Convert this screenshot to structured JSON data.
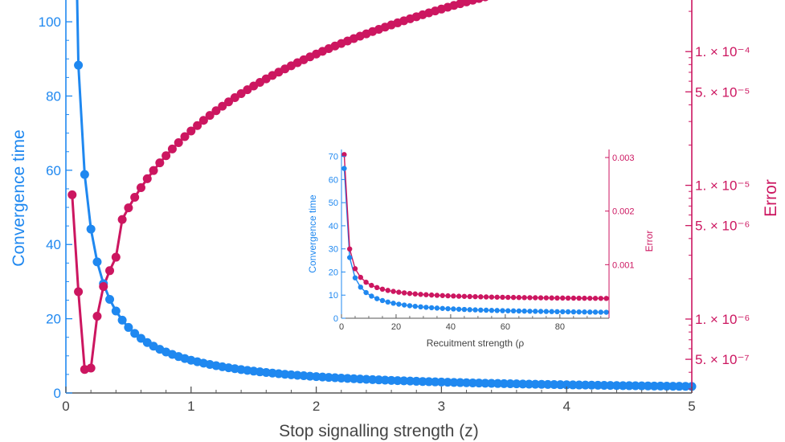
{
  "colors": {
    "convergence": "#1f88f0",
    "error": "#cc1660",
    "axis": "#555555"
  },
  "chart_data": [
    {
      "type": "scatter",
      "xlabel": "Stop signalling strength (z)",
      "ylabel": "Convergence time",
      "y2label": "Error",
      "xlim": [
        0,
        5
      ],
      "ylim": [
        0,
        105
      ],
      "y2lim_log": [
        2.8e-07,
        0.00023
      ],
      "y2scale": "log",
      "xticks": [
        "0",
        "1",
        "2",
        "3",
        "4",
        "5"
      ],
      "yticks": [
        "0",
        "20",
        "40",
        "60",
        "80",
        "100"
      ],
      "y2ticks": [
        {
          "value": 0.0001,
          "label": "1. × 10⁻⁴"
        },
        {
          "value": 5e-05,
          "label": "5. × 10⁻⁵"
        },
        {
          "value": 1e-05,
          "label": "1. × 10⁻⁵"
        },
        {
          "value": 5e-06,
          "label": "5. × 10⁻⁶"
        },
        {
          "value": 1e-06,
          "label": "1. × 10⁻⁶"
        },
        {
          "value": 5e-07,
          "label": "5. × 10⁻⁷"
        }
      ],
      "series": [
        {
          "axis": "left",
          "color_key": "convergence",
          "model": "c/z",
          "coef": 8.83,
          "x_start": 0.05,
          "x_end": 5.0,
          "x_step": 0.05
        },
        {
          "axis": "right",
          "color_key": "error",
          "points": [
            [
              0.05,
              8.5e-06
            ],
            [
              0.1,
              1.6e-06
            ],
            [
              0.15,
              4.2e-07
            ],
            [
              0.2,
              4.3e-07
            ],
            [
              0.25,
              1.05e-06
            ],
            [
              0.3,
              1.75e-06
            ],
            [
              0.35,
              2.3e-06
            ],
            [
              0.4,
              2.9e-06
            ]
          ],
          "model": "power",
          "power_base": 2.55e-05,
          "power_exp": 1.91,
          "x_step": 0.05,
          "x_end": 5.0
        }
      ]
    },
    {
      "type": "scatter",
      "xlabel": "Recuitment strength (ρ",
      "ylabel": "Convergence time",
      "y2label": "Error",
      "xlim": [
        0,
        98
      ],
      "ylim": [
        0,
        73
      ],
      "y2lim": [
        0,
        0.00315
      ],
      "xticks": [
        "0",
        "20",
        "40",
        "60",
        "80"
      ],
      "yticks": [
        "0",
        "10",
        "20",
        "30",
        "40",
        "50",
        "60",
        "70"
      ],
      "y2ticks": [
        {
          "value": 0.001,
          "label": "0.001"
        },
        {
          "value": 0.002,
          "label": "0.002"
        },
        {
          "value": 0.003,
          "label": "0.003"
        }
      ],
      "series": [
        {
          "axis": "left",
          "color_key": "convergence",
          "model": "inverse",
          "a": 1.3,
          "b": 63.5,
          "p": 0.85,
          "x_start": 1,
          "x_end": 97,
          "x_step": 2
        },
        {
          "axis": "right",
          "color_key": "error",
          "model": "inverse",
          "a": 0.000335,
          "b": 0.00272,
          "p": 0.95,
          "x_start": 1,
          "x_end": 97,
          "x_step": 2
        }
      ]
    }
  ]
}
